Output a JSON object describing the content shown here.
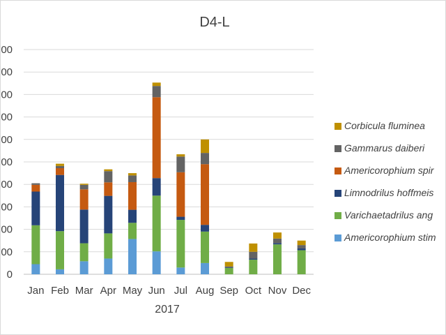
{
  "chart_data": {
    "type": "stacked_bar",
    "title": "D4-L",
    "xlabel": "2017",
    "ylabel": "",
    "categories": [
      "Jan",
      "Feb",
      "Mar",
      "Apr",
      "May",
      "Jun",
      "Jul",
      "Aug",
      "Sep",
      "Oct",
      "Nov",
      "Dec"
    ],
    "y_tick_labels": [
      "0",
      "00",
      "00",
      "00",
      "00",
      "00",
      "00",
      "00",
      "00",
      "00",
      "00"
    ],
    "y_units_max": 10,
    "grid": true,
    "legend_position": "right",
    "series": [
      {
        "name": "Americorophium stim",
        "color": "#5b9bd5",
        "values": [
          0.45,
          0.22,
          0.58,
          0.7,
          1.57,
          1.02,
          0.3,
          0.5,
          0.0,
          0.0,
          0.0,
          0.0
        ]
      },
      {
        "name": "Varichaetadrilus ang",
        "color": "#70ad47",
        "values": [
          1.73,
          1.7,
          0.8,
          1.12,
          0.72,
          2.48,
          2.12,
          1.4,
          0.28,
          0.65,
          1.33,
          1.07
        ]
      },
      {
        "name": "Limnodrilus hoffmeis",
        "color": "#264478",
        "values": [
          1.5,
          2.5,
          1.5,
          1.67,
          0.58,
          0.78,
          0.14,
          0.3,
          0.02,
          0.05,
          0.06,
          0.08
        ]
      },
      {
        "name": "Americorophium spir",
        "color": "#c55a11",
        "values": [
          0.3,
          0.3,
          0.9,
          0.6,
          1.23,
          3.6,
          1.98,
          2.7,
          0.0,
          0.0,
          0.0,
          0.0
        ]
      },
      {
        "name": "Gammarus daiberi",
        "color": "#636363",
        "values": [
          0.07,
          0.1,
          0.2,
          0.5,
          0.3,
          0.5,
          0.7,
          0.5,
          0.05,
          0.3,
          0.2,
          0.15
        ]
      },
      {
        "name": "Corbicula fluminea",
        "color": "#bf9000",
        "values": [
          0.0,
          0.1,
          0.05,
          0.08,
          0.1,
          0.15,
          0.1,
          0.6,
          0.2,
          0.37,
          0.27,
          0.2
        ]
      }
    ]
  }
}
